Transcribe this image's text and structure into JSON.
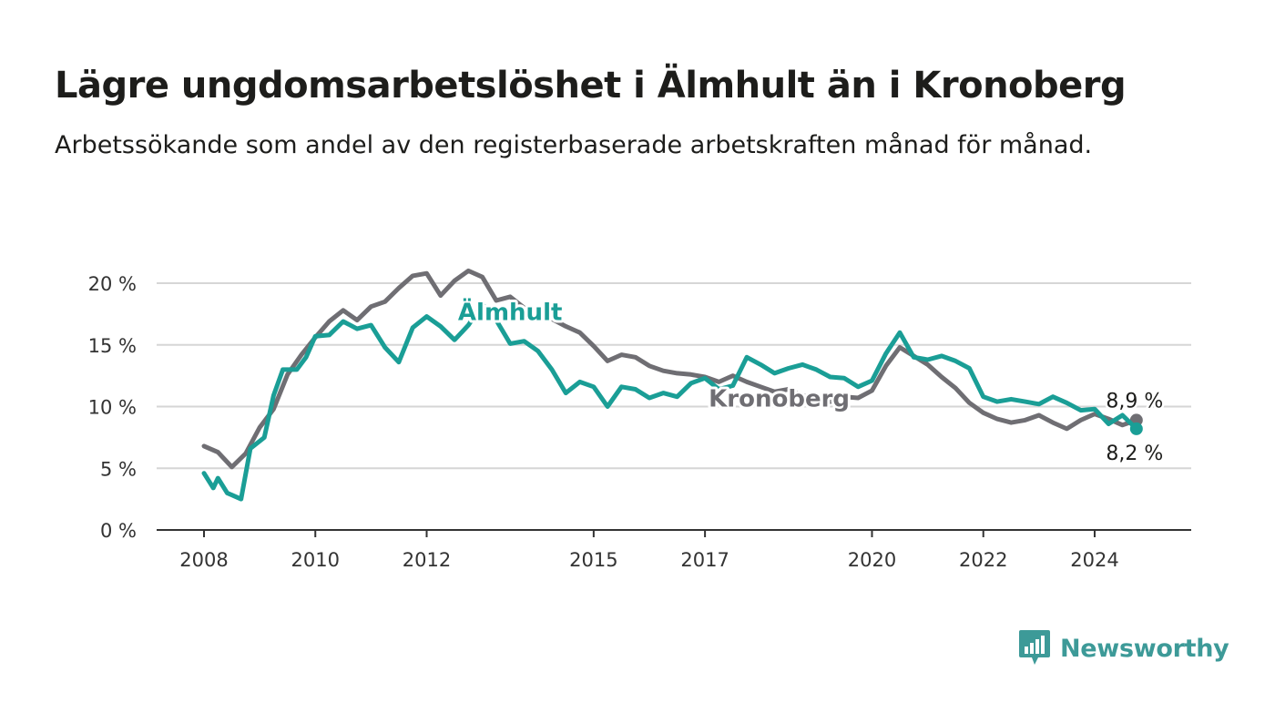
{
  "header": {
    "title": "Lägre ungdomsarbetslöshet i Älmhult än i Kronoberg",
    "subtitle": "Arbetssökande som andel av den registerbaserade arbetskraften månad för månad."
  },
  "brand": {
    "name": "Newsworthy",
    "color": "#3d9a98",
    "icon": "newsworthy-logo-icon"
  },
  "chart_data": {
    "type": "line",
    "title": "Lägre ungdomsarbetslöshet i Älmhult än i Kronoberg",
    "subtitle": "Arbetssökande som andel av den registerbaserade arbetskraften månad för månad.",
    "xlabel": "",
    "ylabel": "",
    "x_range": [
      "2008-01",
      "2024-12"
    ],
    "ylim": [
      0,
      20
    ],
    "x_ticks": [
      {
        "value": "2008-01",
        "label": "2008"
      },
      {
        "value": "2010-01",
        "label": "2010"
      },
      {
        "value": "2012-01",
        "label": "2012"
      },
      {
        "value": "2015-01",
        "label": "2015"
      },
      {
        "value": "2017-01",
        "label": "2017"
      },
      {
        "value": "2020-01",
        "label": "2020"
      },
      {
        "value": "2022-01",
        "label": "2022"
      },
      {
        "value": "2024-01",
        "label": "2024"
      }
    ],
    "y_ticks": [
      {
        "value": 0,
        "label": "0 %"
      },
      {
        "value": 5,
        "label": "5 %"
      },
      {
        "value": 10,
        "label": "10 %"
      },
      {
        "value": 15,
        "label": "15 %"
      },
      {
        "value": 20,
        "label": "20 %"
      }
    ],
    "grid": true,
    "series": [
      {
        "name": "Kronoberg",
        "color": "#6f6e73",
        "end_label": "8,9 %",
        "points": [
          [
            "2008-01",
            6.8
          ],
          [
            "2008-04",
            6.3
          ],
          [
            "2008-07",
            5.1
          ],
          [
            "2008-10",
            6.2
          ],
          [
            "2009-01",
            8.3
          ],
          [
            "2009-04",
            9.8
          ],
          [
            "2009-07",
            12.6
          ],
          [
            "2009-10",
            14.2
          ],
          [
            "2010-01",
            15.6
          ],
          [
            "2010-04",
            16.9
          ],
          [
            "2010-07",
            17.8
          ],
          [
            "2010-10",
            17.0
          ],
          [
            "2011-01",
            18.1
          ],
          [
            "2011-04",
            18.5
          ],
          [
            "2011-07",
            19.6
          ],
          [
            "2011-10",
            20.6
          ],
          [
            "2012-01",
            20.8
          ],
          [
            "2012-04",
            19.0
          ],
          [
            "2012-07",
            20.2
          ],
          [
            "2012-10",
            21.0
          ],
          [
            "2013-01",
            20.5
          ],
          [
            "2013-04",
            18.6
          ],
          [
            "2013-07",
            18.9
          ],
          [
            "2013-10",
            18.0
          ],
          [
            "2014-01",
            17.4
          ],
          [
            "2014-04",
            17.1
          ],
          [
            "2014-07",
            16.5
          ],
          [
            "2014-10",
            16.0
          ],
          [
            "2015-01",
            14.9
          ],
          [
            "2015-04",
            13.7
          ],
          [
            "2015-07",
            14.2
          ],
          [
            "2015-10",
            14.0
          ],
          [
            "2016-01",
            13.3
          ],
          [
            "2016-04",
            12.9
          ],
          [
            "2016-07",
            12.7
          ],
          [
            "2016-10",
            12.6
          ],
          [
            "2017-01",
            12.4
          ],
          [
            "2017-04",
            12.0
          ],
          [
            "2017-07",
            12.5
          ],
          [
            "2017-10",
            12.0
          ],
          [
            "2018-01",
            11.6
          ],
          [
            "2018-04",
            11.2
          ],
          [
            "2018-07",
            11.4
          ],
          [
            "2018-10",
            10.9
          ],
          [
            "2019-01",
            10.6
          ],
          [
            "2019-04",
            10.4
          ],
          [
            "2019-07",
            10.8
          ],
          [
            "2019-10",
            10.7
          ],
          [
            "2020-01",
            11.3
          ],
          [
            "2020-04",
            13.3
          ],
          [
            "2020-07",
            14.8
          ],
          [
            "2020-10",
            14.1
          ],
          [
            "2021-01",
            13.4
          ],
          [
            "2021-04",
            12.4
          ],
          [
            "2021-07",
            11.5
          ],
          [
            "2021-10",
            10.3
          ],
          [
            "2022-01",
            9.5
          ],
          [
            "2022-04",
            9.0
          ],
          [
            "2022-07",
            8.7
          ],
          [
            "2022-10",
            8.9
          ],
          [
            "2023-01",
            9.3
          ],
          [
            "2023-04",
            8.7
          ],
          [
            "2023-07",
            8.2
          ],
          [
            "2023-10",
            8.9
          ],
          [
            "2024-01",
            9.4
          ],
          [
            "2024-04",
            9.0
          ],
          [
            "2024-07",
            8.5
          ],
          [
            "2024-10",
            8.9
          ]
        ]
      },
      {
        "name": "Älmhult",
        "color": "#1a9e96",
        "end_label": "8,2 %",
        "points": [
          [
            "2008-01",
            4.6
          ],
          [
            "2008-03",
            3.4
          ],
          [
            "2008-04",
            4.2
          ],
          [
            "2008-06",
            3.0
          ],
          [
            "2008-09",
            2.5
          ],
          [
            "2008-11",
            6.6
          ],
          [
            "2009-02",
            7.5
          ],
          [
            "2009-04",
            10.9
          ],
          [
            "2009-06",
            13.0
          ],
          [
            "2009-09",
            13.0
          ],
          [
            "2009-11",
            14.0
          ],
          [
            "2010-01",
            15.7
          ],
          [
            "2010-04",
            15.8
          ],
          [
            "2010-07",
            16.9
          ],
          [
            "2010-10",
            16.3
          ],
          [
            "2011-01",
            16.6
          ],
          [
            "2011-04",
            14.8
          ],
          [
            "2011-07",
            13.6
          ],
          [
            "2011-10",
            16.4
          ],
          [
            "2012-01",
            17.3
          ],
          [
            "2012-04",
            16.5
          ],
          [
            "2012-07",
            15.4
          ],
          [
            "2012-10",
            16.6
          ],
          [
            "2013-01",
            18.3
          ],
          [
            "2013-04",
            17.0
          ],
          [
            "2013-07",
            15.1
          ],
          [
            "2013-10",
            15.3
          ],
          [
            "2014-01",
            14.5
          ],
          [
            "2014-04",
            13.0
          ],
          [
            "2014-07",
            11.1
          ],
          [
            "2014-10",
            12.0
          ],
          [
            "2015-01",
            11.6
          ],
          [
            "2015-04",
            10.0
          ],
          [
            "2015-07",
            11.6
          ],
          [
            "2015-10",
            11.4
          ],
          [
            "2016-01",
            10.7
          ],
          [
            "2016-04",
            11.1
          ],
          [
            "2016-07",
            10.8
          ],
          [
            "2016-10",
            11.9
          ],
          [
            "2017-01",
            12.3
          ],
          [
            "2017-04",
            11.4
          ],
          [
            "2017-07",
            11.7
          ],
          [
            "2017-10",
            14.0
          ],
          [
            "2018-01",
            13.4
          ],
          [
            "2018-04",
            12.7
          ],
          [
            "2018-07",
            13.1
          ],
          [
            "2018-10",
            13.4
          ],
          [
            "2019-01",
            13.0
          ],
          [
            "2019-04",
            12.4
          ],
          [
            "2019-07",
            12.3
          ],
          [
            "2019-10",
            11.6
          ],
          [
            "2020-01",
            12.1
          ],
          [
            "2020-04",
            14.3
          ],
          [
            "2020-07",
            16.0
          ],
          [
            "2020-10",
            14.0
          ],
          [
            "2021-01",
            13.8
          ],
          [
            "2021-04",
            14.1
          ],
          [
            "2021-07",
            13.7
          ],
          [
            "2021-10",
            13.1
          ],
          [
            "2022-01",
            10.8
          ],
          [
            "2022-04",
            10.4
          ],
          [
            "2022-07",
            10.6
          ],
          [
            "2022-10",
            10.4
          ],
          [
            "2023-01",
            10.2
          ],
          [
            "2023-04",
            10.8
          ],
          [
            "2023-07",
            10.3
          ],
          [
            "2023-10",
            9.7
          ],
          [
            "2024-01",
            9.8
          ],
          [
            "2024-04",
            8.6
          ],
          [
            "2024-07",
            9.3
          ],
          [
            "2024-10",
            8.2
          ]
        ]
      }
    ],
    "series_labels": [
      {
        "series": "Älmhult",
        "text": "Älmhult",
        "at": [
          "2013-07",
          17.0
        ]
      },
      {
        "series": "Kronoberg",
        "text": "Kronoberg",
        "at": [
          "2018-05",
          10.0
        ]
      }
    ],
    "legend": "none"
  }
}
